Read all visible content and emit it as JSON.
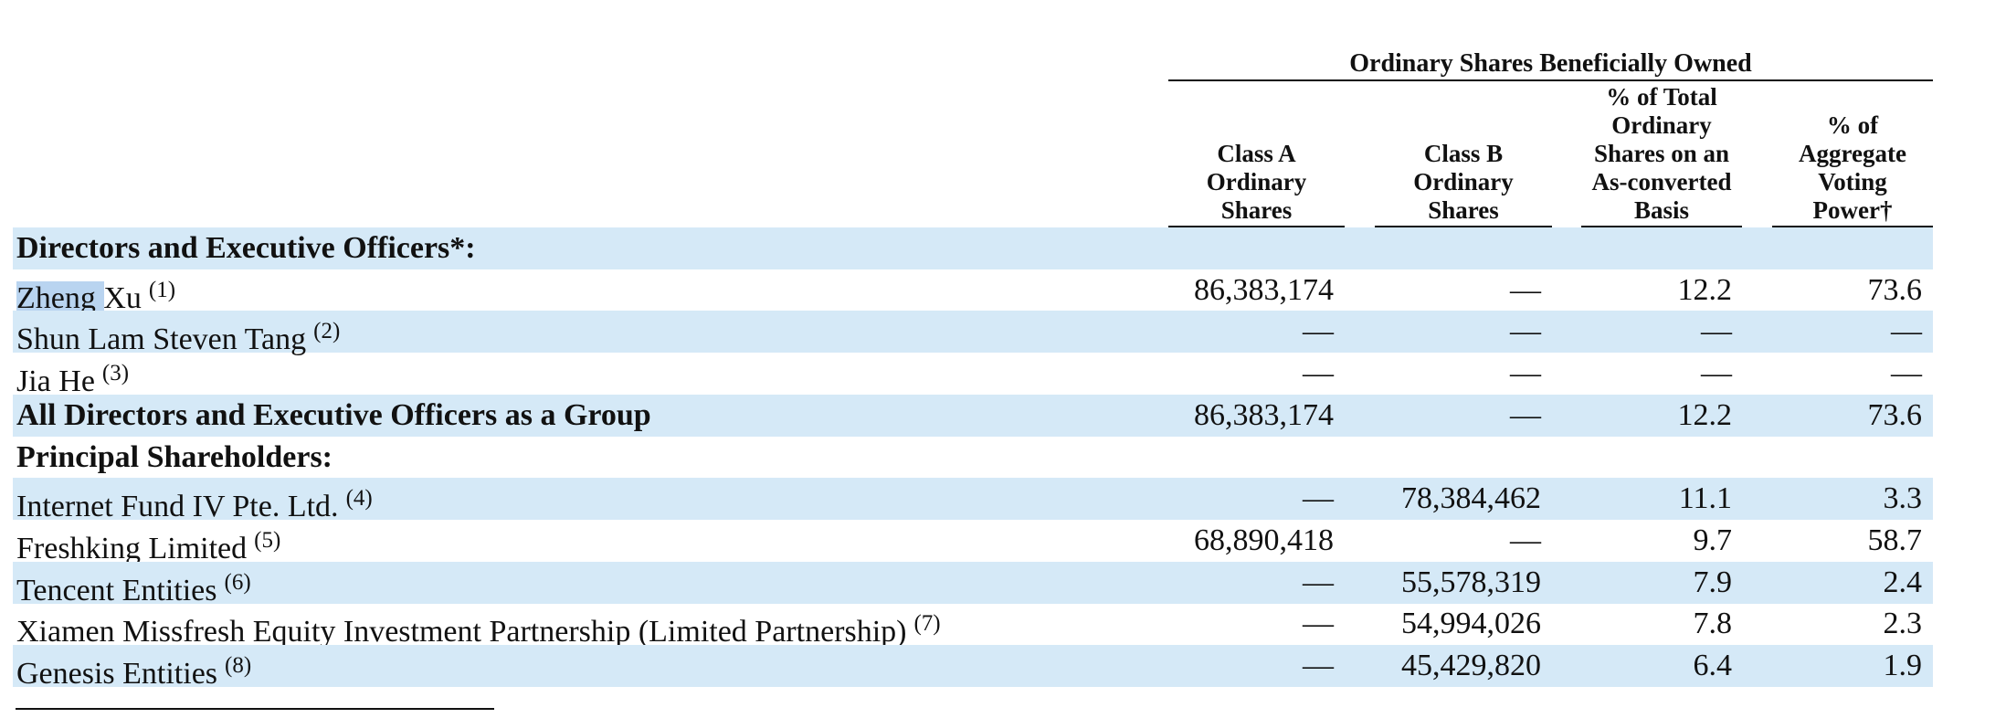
{
  "table": {
    "group_header": "Ordinary Shares Beneficially Owned",
    "columns": [
      [
        "Class A",
        "Ordinary",
        "Shares"
      ],
      [
        "Class B",
        "Ordinary",
        "Shares"
      ],
      [
        "% of Total",
        "Ordinary",
        "Shares on an",
        "As-converted",
        "Basis"
      ],
      [
        "% of",
        "Aggregate",
        "Voting",
        "Power†"
      ]
    ],
    "rows": [
      {
        "label": "Directors and Executive Officers*:",
        "bold": true,
        "cells": []
      },
      {
        "label": "Zheng Xu",
        "note": "(1)",
        "cells": [
          "86,383,174",
          "—",
          "12.2",
          "73.6"
        ]
      },
      {
        "label": "Shun Lam Steven Tang",
        "note": "(2)",
        "cells": [
          "—",
          "—",
          "—",
          "—"
        ]
      },
      {
        "label": "Jia He",
        "note": "(3)",
        "cells": [
          "—",
          "—",
          "—",
          "—"
        ]
      },
      {
        "label": "All Directors and Executive Officers as a Group",
        "bold": true,
        "cells": [
          "86,383,174",
          "—",
          "12.2",
          "73.6"
        ]
      },
      {
        "label": "Principal Shareholders:",
        "bold": true,
        "cells": []
      },
      {
        "label": "Internet Fund IV Pte. Ltd.",
        "note": "(4)",
        "cells": [
          "—",
          "78,384,462",
          "11.1",
          "3.3"
        ]
      },
      {
        "label": "Freshking Limited",
        "note": "(5)",
        "cells": [
          "68,890,418",
          "—",
          "9.7",
          "58.7"
        ]
      },
      {
        "label": "Tencent Entities",
        "note": "(6)",
        "cells": [
          "—",
          "55,578,319",
          "7.9",
          "2.4"
        ]
      },
      {
        "label": "Xiamen Missfresh Equity Investment Partnership (Limited Partnership)",
        "note": "(7)",
        "cells": [
          "—",
          "54,994,026",
          "7.8",
          "2.3"
        ]
      },
      {
        "label": "Genesis Entities",
        "note": "(8)",
        "cells": [
          "—",
          "45,429,820",
          "6.4",
          "1.9"
        ]
      }
    ]
  }
}
